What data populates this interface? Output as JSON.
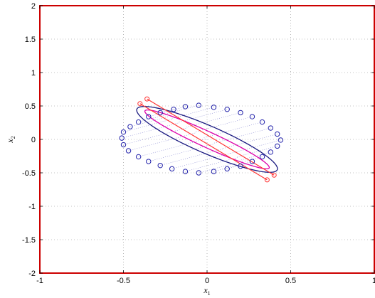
{
  "chart_data": {
    "type": "scatter",
    "title": "",
    "xlabel": "x",
    "xlabel_sub": "1",
    "ylabel": "x",
    "ylabel_sub": "2",
    "xlim": [
      -1,
      1
    ],
    "ylim": [
      -2,
      2
    ],
    "x_ticks": [
      -1,
      -0.5,
      0,
      0.5,
      1
    ],
    "x_tick_labels": [
      "-1",
      "-0.5",
      "0",
      "0.5",
      "1"
    ],
    "y_ticks": [
      -2,
      -1.5,
      -1,
      -0.5,
      0,
      0.5,
      1,
      1.5,
      2
    ],
    "y_tick_labels": [
      "-2",
      "-1.5",
      "-1",
      "-0.5",
      "0",
      "0.5",
      "1",
      "1.5",
      "2"
    ],
    "grid": true,
    "colors": {
      "frame": "#cc0000",
      "circles": "#2222aa",
      "outer_ellipse": "#1a1a80",
      "inner_ellipse": "#dd00aa",
      "segment": "#ff3333",
      "grid": "#888888"
    },
    "series": [
      {
        "kind": "circle-markers",
        "points": [
          [
            -0.05,
            0.51
          ],
          [
            0.04,
            0.48
          ],
          [
            0.12,
            0.45
          ],
          [
            0.2,
            0.4
          ],
          [
            0.27,
            0.34
          ],
          [
            0.33,
            0.26
          ],
          [
            0.38,
            0.17
          ],
          [
            0.42,
            0.08
          ],
          [
            0.44,
            -0.01
          ],
          [
            0.42,
            -0.1
          ],
          [
            0.38,
            -0.19
          ],
          [
            0.33,
            -0.26
          ],
          [
            0.27,
            -0.33
          ],
          [
            0.2,
            -0.4
          ],
          [
            0.12,
            -0.44
          ],
          [
            0.04,
            -0.48
          ],
          [
            -0.05,
            -0.5
          ],
          [
            -0.13,
            -0.48
          ],
          [
            -0.21,
            -0.44
          ],
          [
            -0.28,
            -0.39
          ],
          [
            -0.35,
            -0.33
          ],
          [
            -0.41,
            -0.26
          ],
          [
            -0.47,
            -0.17
          ],
          [
            -0.5,
            -0.08
          ],
          [
            -0.51,
            0.02
          ],
          [
            -0.5,
            0.11
          ],
          [
            -0.46,
            0.19
          ],
          [
            -0.41,
            0.26
          ],
          [
            -0.35,
            0.34
          ],
          [
            -0.28,
            0.4
          ],
          [
            -0.2,
            0.45
          ],
          [
            -0.13,
            0.49
          ]
        ]
      },
      {
        "kind": "outer-ellipse",
        "center": [
          0,
          0
        ],
        "semi_axes": [
          0.63,
          0.15
        ],
        "angle_deg": -50
      },
      {
        "kind": "inner-ellipse",
        "center": [
          0,
          0
        ],
        "semi_axes": [
          0.57,
          0.085
        ],
        "angle_deg": -50
      },
      {
        "kind": "segment",
        "endpoints": [
          [
            -0.38,
            0.57
          ],
          [
            0.38,
            -0.57
          ]
        ],
        "offset": 0.035
      }
    ]
  }
}
